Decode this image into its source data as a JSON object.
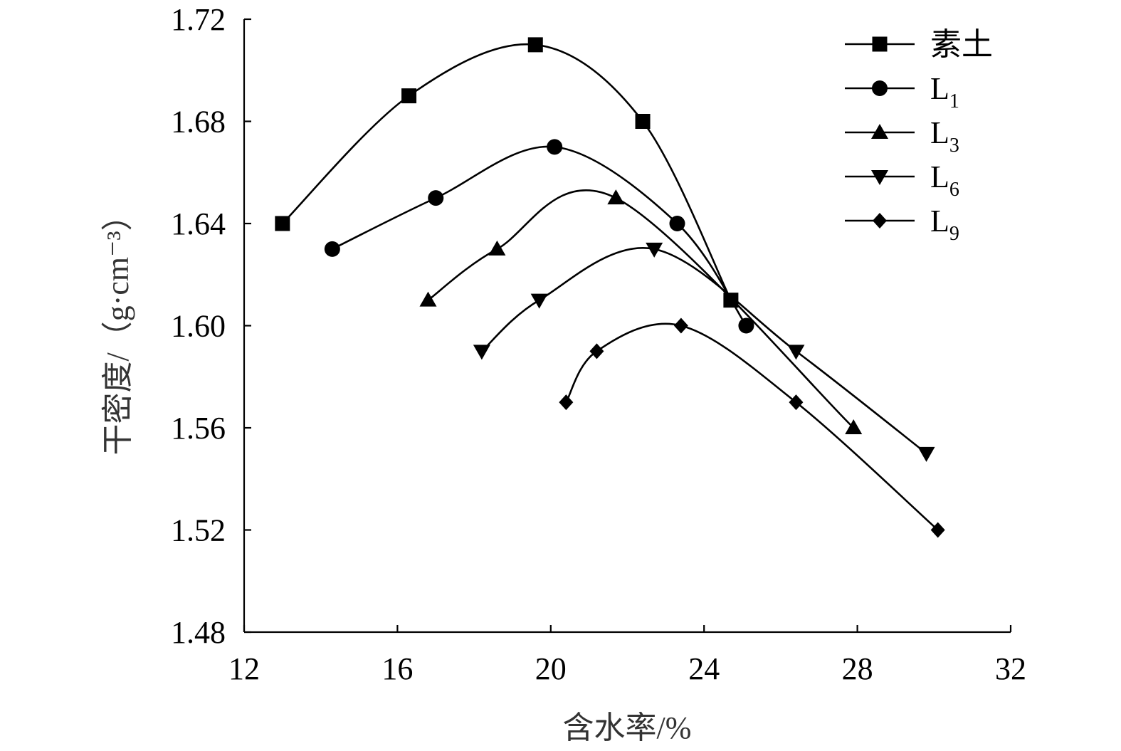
{
  "chart_data": {
    "type": "line",
    "title": "",
    "xlabel": "含水率/%",
    "ylabel": "干密度/（g·cm⁻³）",
    "xlim": [
      12,
      32
    ],
    "ylim": [
      1.48,
      1.72
    ],
    "x_ticks": [
      "12",
      "16",
      "20",
      "24",
      "28",
      "32"
    ],
    "y_ticks": [
      "1.48",
      "1.52",
      "1.56",
      "1.60",
      "1.64",
      "1.68",
      "1.72"
    ],
    "grid": false,
    "legend_position": "top-right",
    "series": [
      {
        "name": "素土",
        "marker": "square",
        "x": [
          13.0,
          16.3,
          19.6,
          22.4,
          24.7
        ],
        "y": [
          1.64,
          1.69,
          1.71,
          1.68,
          1.61
        ]
      },
      {
        "name": "L1",
        "marker": "circle",
        "x": [
          14.3,
          17.0,
          20.1,
          23.3,
          25.1
        ],
        "y": [
          1.63,
          1.65,
          1.67,
          1.64,
          1.6
        ]
      },
      {
        "name": "L3",
        "marker": "triangle-up",
        "x": [
          16.8,
          18.6,
          21.7,
          27.9
        ],
        "y": [
          1.61,
          1.63,
          1.65,
          1.56
        ]
      },
      {
        "name": "L6",
        "marker": "triangle-down",
        "x": [
          18.2,
          19.7,
          22.7,
          26.4,
          29.8
        ],
        "y": [
          1.59,
          1.61,
          1.63,
          1.59,
          1.55
        ]
      },
      {
        "name": "L9",
        "marker": "diamond",
        "x": [
          20.4,
          21.2,
          23.4,
          26.4,
          30.1
        ],
        "y": [
          1.57,
          1.59,
          1.6,
          1.57,
          1.52
        ]
      }
    ]
  }
}
